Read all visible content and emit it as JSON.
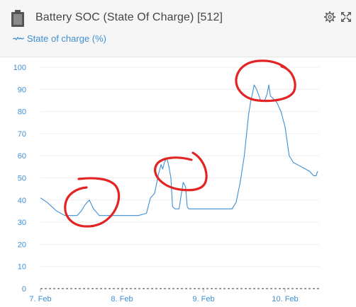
{
  "header": {
    "title": "Battery SOC (State Of Charge) [512]",
    "icons": {
      "battery": "battery-icon",
      "settings": "gear-icon",
      "expand": "expand-icon"
    }
  },
  "legend": {
    "series_label": "State of charge (%)"
  },
  "colors": {
    "series": "#3f8fd2",
    "annotation": "#e32424",
    "axis_text": "#3f8fd2",
    "grid": "#eeeeee"
  },
  "chart_data": {
    "type": "line",
    "title": "",
    "xlabel": "",
    "ylabel": "",
    "ylim": [
      0,
      100
    ],
    "y_ticks": [
      "0",
      "10",
      "20",
      "30",
      "40",
      "50",
      "60",
      "70",
      "80",
      "90",
      "100"
    ],
    "x_ticks": [
      "7. Feb",
      "8. Feb",
      "9. Feb",
      "10. Feb"
    ],
    "series": [
      {
        "x": [
          7.0,
          7.08,
          7.14,
          7.2,
          7.25,
          7.3,
          7.35,
          7.45,
          7.5,
          7.55,
          7.6,
          7.65,
          7.7,
          7.72,
          7.75,
          7.9,
          8.2,
          8.3,
          8.35,
          8.4,
          8.45,
          8.48,
          8.5,
          8.52,
          8.55,
          8.57,
          8.6,
          8.62,
          8.65,
          8.7,
          8.75,
          8.78,
          8.8,
          8.82,
          9.0,
          9.2,
          9.35,
          9.4,
          9.45,
          9.5,
          9.55,
          9.58,
          9.6,
          9.62,
          9.65,
          9.7,
          9.75,
          9.78,
          9.8,
          9.82,
          9.85,
          9.9,
          9.95,
          10.0,
          10.05,
          10.1,
          10.15,
          10.2,
          10.25,
          10.3,
          10.35,
          10.38,
          10.4
        ],
        "y": [
          41,
          39,
          37,
          35,
          34,
          33,
          33,
          33,
          35,
          38,
          40,
          36,
          34,
          33,
          33,
          33,
          33,
          34,
          41,
          43,
          52,
          56,
          54,
          57,
          59,
          56,
          50,
          37,
          36,
          36,
          48,
          46,
          37,
          36,
          36,
          36,
          36,
          39,
          48,
          60,
          78,
          85,
          88,
          92,
          90,
          85,
          85,
          88,
          92,
          87,
          86,
          84,
          80,
          73,
          60,
          57,
          56,
          55,
          54,
          53,
          51,
          51,
          53
        ]
      }
    ],
    "annotations": "Hand-drawn red circles mark the peaks near 7. Feb, 8. Feb and 9. Feb"
  }
}
